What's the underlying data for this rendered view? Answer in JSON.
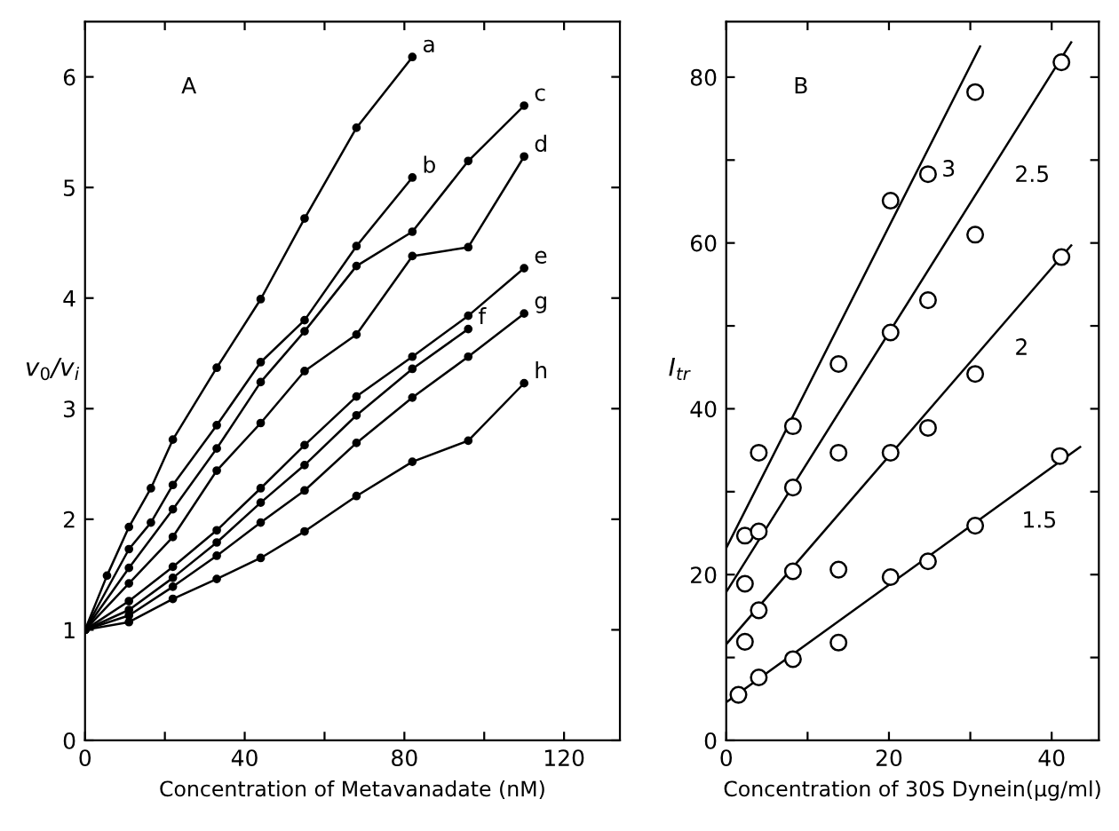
{
  "chart_data": [
    {
      "type": "line",
      "xlabel": "Concentration of Metavanadate (nM)",
      "ylabel": "v$_{0}$/v$_{i}$",
      "xlim": [
        0,
        134
      ],
      "ylim": [
        0,
        6.5
      ],
      "xticks": [
        0,
        {
          "value": 20,
          "label": null
        },
        40,
        {
          "value": 60,
          "label": null
        },
        80,
        {
          "value": 100,
          "label": null
        },
        120
      ],
      "yticks": [
        0,
        1,
        2,
        3,
        4,
        5,
        6
      ],
      "grid": false,
      "marker": "circle",
      "annotations": [
        "A"
      ],
      "series": [
        {
          "name": "a",
          "color": "#000000",
          "x": [
            0,
            5.5,
            11,
            16.5,
            22,
            33,
            44,
            55,
            68,
            82
          ],
          "values": [
            1,
            1.49,
            1.93,
            2.28,
            2.72,
            3.37,
            3.99,
            4.72,
            5.54,
            6.18
          ]
        },
        {
          "name": "b",
          "color": "#000000",
          "x": [
            0,
            11,
            16.5,
            22,
            33,
            44,
            55,
            68,
            82
          ],
          "values": [
            1,
            1.73,
            1.97,
            2.31,
            2.85,
            3.42,
            3.8,
            4.47,
            5.09
          ]
        },
        {
          "name": "c",
          "color": "#000000",
          "x": [
            0,
            11,
            22,
            33,
            44,
            55,
            68,
            82,
            96,
            110
          ],
          "values": [
            1,
            1.56,
            2.09,
            2.64,
            3.24,
            3.7,
            4.29,
            4.6,
            5.24,
            5.74
          ]
        },
        {
          "name": "d",
          "color": "#000000",
          "x": [
            0,
            11,
            22,
            33,
            44,
            55,
            68,
            82,
            96,
            110
          ],
          "values": [
            1,
            1.42,
            1.84,
            2.44,
            2.87,
            3.34,
            3.67,
            4.38,
            4.46,
            5.28
          ]
        },
        {
          "name": "e",
          "color": "#000000",
          "x": [
            0,
            11,
            22,
            33,
            44,
            55,
            68,
            82,
            96,
            110
          ],
          "values": [
            1,
            1.26,
            1.57,
            1.9,
            2.28,
            2.67,
            3.11,
            3.47,
            3.84,
            4.27
          ]
        },
        {
          "name": "f",
          "color": "#000000",
          "x": [
            0,
            11,
            22,
            33,
            44,
            55,
            68,
            82,
            96
          ],
          "values": [
            1,
            1.18,
            1.47,
            1.79,
            2.15,
            2.49,
            2.94,
            3.36,
            3.72
          ]
        },
        {
          "name": "g",
          "color": "#000000",
          "x": [
            0,
            11,
            22,
            33,
            44,
            55,
            68,
            82,
            96,
            110
          ],
          "values": [
            1,
            1.13,
            1.39,
            1.67,
            1.97,
            2.26,
            2.69,
            3.1,
            3.47,
            3.86
          ]
        },
        {
          "name": "h",
          "color": "#000000",
          "x": [
            0,
            11,
            22,
            33,
            44,
            55,
            68,
            82,
            96,
            110
          ],
          "values": [
            1,
            1.07,
            1.28,
            1.46,
            1.65,
            1.89,
            2.21,
            2.52,
            2.71,
            3.23
          ]
        }
      ]
    },
    {
      "type": "scatter",
      "xlabel": "Concentration of 30S Dynein(µg/ml)",
      "ylabel": "I$_{tr}$",
      "xlim": [
        0,
        45.8
      ],
      "ylim": [
        0,
        86.7
      ],
      "xticks": [
        0,
        {
          "value": 10,
          "label": null
        },
        20,
        {
          "value": 30,
          "label": null
        },
        40
      ],
      "yticks": [
        0,
        {
          "value": 10,
          "label": null
        },
        20,
        {
          "value": 30,
          "label": null
        },
        40,
        {
          "value": 50,
          "label": null
        },
        60,
        {
          "value": 70,
          "label": null
        },
        80
      ],
      "grid": false,
      "marker": "circle",
      "annotations": [
        "B"
      ],
      "series": [
        {
          "color": "#000000",
          "x": [
            2.3,
            4.0,
            8.2,
            13.8,
            20.2,
            24.8,
            30.6
          ],
          "values": [
            24.7,
            34.7,
            37.9,
            45.4,
            65.1,
            68.3,
            78.2
          ]
        },
        {
          "color": "#000000",
          "x": [
            2.3,
            4.0,
            8.2,
            13.8,
            20.2,
            24.8,
            30.6,
            41.2
          ],
          "values": [
            18.9,
            25.2,
            30.5,
            34.7,
            49.2,
            53.1,
            61.0,
            81.8
          ]
        },
        {
          "color": "#000000",
          "x": [
            2.3,
            4.0,
            8.2,
            13.8,
            20.2,
            24.8,
            30.6,
            41.2
          ],
          "values": [
            11.9,
            15.7,
            20.4,
            20.6,
            34.7,
            37.7,
            44.2,
            58.3
          ]
        },
        {
          "color": "#000000",
          "x": [
            1.5,
            4.0,
            8.2,
            13.8,
            20.2,
            24.8,
            30.6,
            41.0
          ],
          "values": [
            5.5,
            7.6,
            9.8,
            11.8,
            19.7,
            21.6,
            25.9,
            34.3
          ]
        },
        {
          "type": "line",
          "name": "3",
          "color": "#000000",
          "marker": "none",
          "x": [
            0,
            31.2
          ],
          "values": [
            23.2,
            83.7
          ]
        },
        {
          "type": "line",
          "name": "2.5",
          "color": "#000000",
          "marker": "none",
          "x": [
            0,
            42.4
          ],
          "values": [
            17.9,
            84.2
          ]
        },
        {
          "type": "line",
          "name": "2",
          "color": "#000000",
          "marker": "none",
          "x": [
            0,
            42.4
          ],
          "values": [
            11.6,
            59.7
          ]
        },
        {
          "type": "line",
          "name": "1.5",
          "color": "#000000",
          "marker": "none",
          "x": [
            0,
            43.5
          ],
          "values": [
            4.6,
            35.4
          ]
        }
      ]
    }
  ]
}
